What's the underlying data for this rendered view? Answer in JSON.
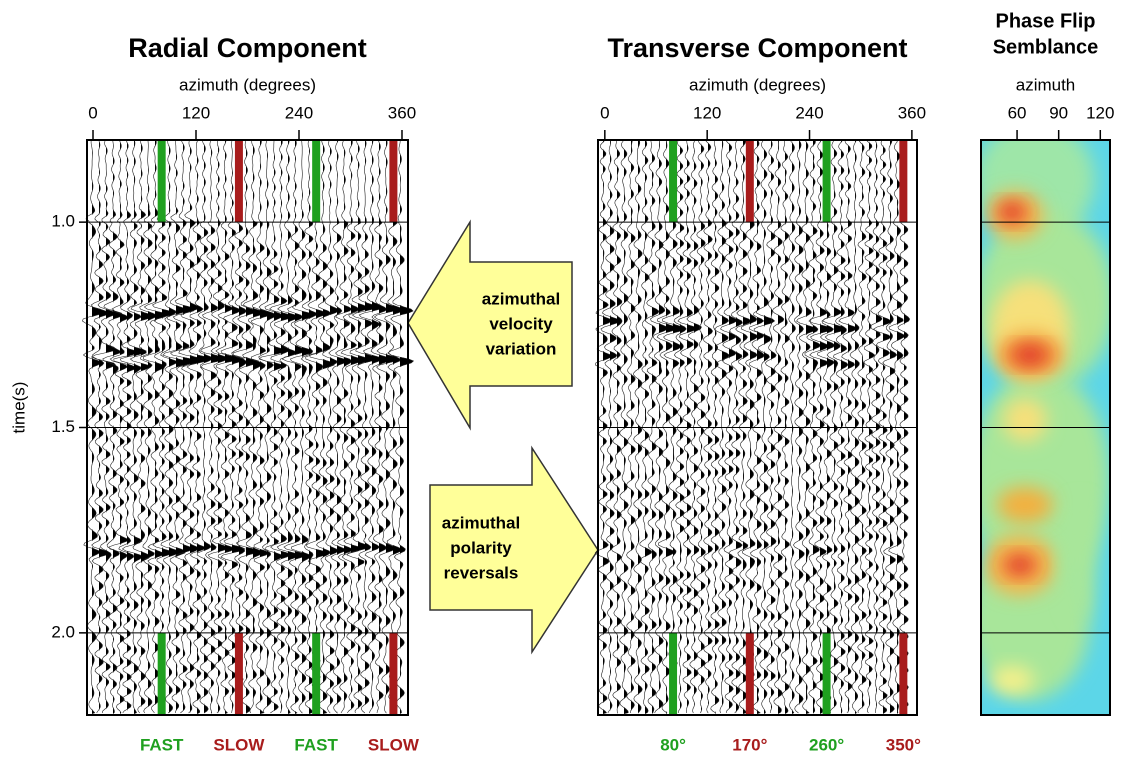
{
  "chart_data": [
    {
      "type": "wiggle",
      "title": "Radial Component",
      "x_label": "azimuth (degrees)",
      "y_label": "time(s)",
      "xlim": [
        -7,
        367
      ],
      "xticks": [
        0,
        120,
        240,
        360
      ],
      "ylim": [
        0.8,
        2.2
      ],
      "yticks": [
        {
          "value": 1,
          "label": "1.0"
        },
        1.5,
        {
          "value": 2,
          "label": "2.0"
        }
      ],
      "markers": [
        {
          "value": 80,
          "label": "FAST",
          "color": "#1fa01f"
        },
        {
          "value": 170,
          "label": "SLOW",
          "color": "#a81c1c"
        },
        {
          "value": 260,
          "label": "FAST",
          "color": "#1fa01f"
        },
        {
          "value": 350,
          "label": "SLOW",
          "color": "#a81c1c"
        }
      ]
    },
    {
      "type": "wiggle",
      "title": "Transverse Component",
      "x_label": "azimuth (degrees)",
      "xlim": [
        -8,
        366
      ],
      "xticks": [
        0,
        120,
        240,
        360
      ],
      "ylim": [
        0.8,
        2.2
      ],
      "yticks": [
        1,
        1.5,
        2
      ],
      "markers": [
        {
          "value": 80,
          "label": "80°",
          "color": "#1fa01f"
        },
        {
          "value": 170,
          "label": "170°",
          "color": "#a81c1c"
        },
        {
          "value": 260,
          "label": "260°",
          "color": "#1fa01f"
        },
        {
          "value": 350,
          "label": "350°",
          "color": "#a81c1c"
        }
      ]
    },
    {
      "type": "heatmap",
      "title": [
        "Phase Flip",
        "Semblance"
      ],
      "x_label": "azimuth",
      "xlim": [
        34,
        127
      ],
      "xticks": [
        60,
        90,
        120
      ],
      "ylim": [
        0.8,
        2.2
      ],
      "yticks": [
        1,
        1.5,
        2
      ]
    }
  ],
  "annotations": [
    {
      "lines": [
        "azimuthal",
        "velocity",
        "variation"
      ]
    },
    {
      "lines": [
        "azimuthal",
        "polarity",
        "reversals"
      ]
    }
  ]
}
